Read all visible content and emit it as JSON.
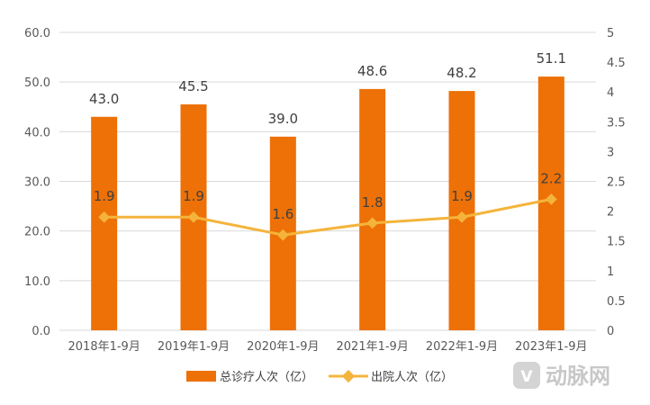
{
  "chart_data": {
    "type": "bar+line",
    "categories": [
      "2018年1-9月",
      "2019年1-9月",
      "2020年1-9月",
      "2021年1-9月",
      "2022年1-9月",
      "2023年1-9月"
    ],
    "series": [
      {
        "name": "总诊疗人次（亿）",
        "type": "bar",
        "axis": "left",
        "color": "#ed7107",
        "values": [
          43.0,
          45.5,
          39.0,
          48.6,
          48.2,
          51.1
        ],
        "labels": [
          "43.0",
          "45.5",
          "39.0",
          "48.6",
          "48.2",
          "51.1"
        ]
      },
      {
        "name": "出院人次（亿）",
        "type": "line",
        "axis": "right",
        "color": "#f4b43c",
        "values": [
          1.9,
          1.9,
          1.6,
          1.8,
          1.9,
          2.2
        ],
        "labels": [
          "1.9",
          "1.9",
          "1.6",
          "1.8",
          "1.9",
          "2.2"
        ]
      }
    ],
    "y_left": {
      "range": [
        0,
        60
      ],
      "ticks": [
        "0.0",
        "10.0",
        "20.0",
        "30.0",
        "40.0",
        "50.0",
        "60.0"
      ]
    },
    "y_right": {
      "range": [
        0,
        5
      ],
      "ticks": [
        "0",
        "0.5",
        "1",
        "1.5",
        "2",
        "2.5",
        "3",
        "3.5",
        "4",
        "4.5",
        "5"
      ]
    },
    "grid": true,
    "legend_position": "bottom"
  },
  "watermark": {
    "logo_text": "动脉网"
  }
}
